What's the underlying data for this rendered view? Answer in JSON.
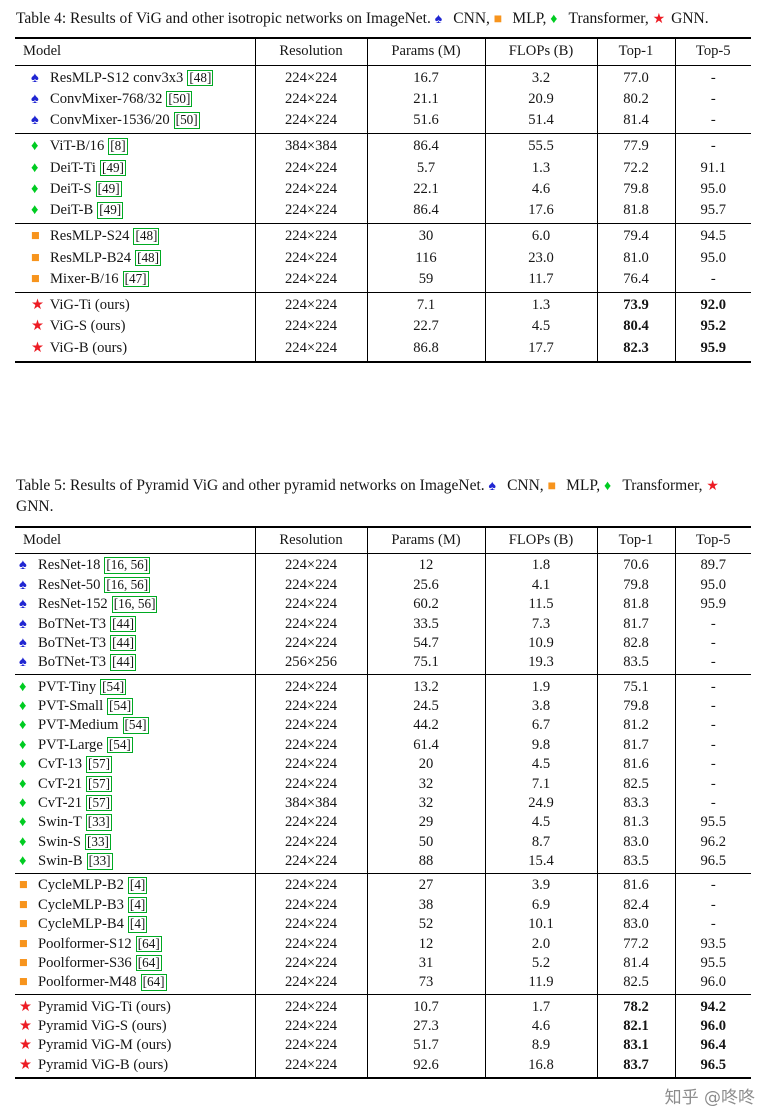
{
  "page": {
    "watermark": "知乎 @咚咚"
  },
  "symbols": {
    "cnn": {
      "glyph": "♠",
      "color": "#2026d2"
    },
    "mlp": {
      "glyph": "■",
      "color": "#f7941d"
    },
    "transformer": {
      "glyph": "♦",
      "color": "#00cc22"
    },
    "gnn": {
      "glyph": "★",
      "color": "#ed1c24"
    }
  },
  "cite_color": "#00aa22",
  "tables": [
    {
      "label": "Table 4:",
      "caption": "Results of ViG and other isotropic networks on ImageNet.",
      "legend": [
        {
          "symbol": "cnn",
          "text": "CNN,"
        },
        {
          "symbol": "mlp",
          "text": "MLP,"
        },
        {
          "symbol": "transformer",
          "text": "Transformer,"
        },
        {
          "symbol": "gnn",
          "text": "GNN."
        }
      ],
      "columns": [
        "Model",
        "Resolution",
        "Params (M)",
        "FLOPs (B)",
        "Top-1",
        "Top-5"
      ],
      "groups": [
        {
          "rows": [
            {
              "symbol": "cnn",
              "model": "ResMLP-S12 conv3x3",
              "cite": "[48]",
              "resolution": "224×224",
              "params": "16.7",
              "flops": "3.2",
              "top1": "77.0",
              "top5": "-"
            },
            {
              "symbol": "cnn",
              "model": "ConvMixer-768/32",
              "cite": "[50]",
              "resolution": "224×224",
              "params": "21.1",
              "flops": "20.9",
              "top1": "80.2",
              "top5": "-"
            },
            {
              "symbol": "cnn",
              "model": "ConvMixer-1536/20",
              "cite": "[50]",
              "resolution": "224×224",
              "params": "51.6",
              "flops": "51.4",
              "top1": "81.4",
              "top5": "-"
            }
          ]
        },
        {
          "rows": [
            {
              "symbol": "transformer",
              "model": "ViT-B/16",
              "cite": "[8]",
              "resolution": "384×384",
              "params": "86.4",
              "flops": "55.5",
              "top1": "77.9",
              "top5": "-"
            },
            {
              "symbol": "transformer",
              "model": "DeiT-Ti",
              "cite": "[49]",
              "resolution": "224×224",
              "params": "5.7",
              "flops": "1.3",
              "top1": "72.2",
              "top5": "91.1"
            },
            {
              "symbol": "transformer",
              "model": "DeiT-S",
              "cite": "[49]",
              "resolution": "224×224",
              "params": "22.1",
              "flops": "4.6",
              "top1": "79.8",
              "top5": "95.0"
            },
            {
              "symbol": "transformer",
              "model": "DeiT-B",
              "cite": "[49]",
              "resolution": "224×224",
              "params": "86.4",
              "flops": "17.6",
              "top1": "81.8",
              "top5": "95.7"
            }
          ]
        },
        {
          "rows": [
            {
              "symbol": "mlp",
              "model": "ResMLP-S24",
              "cite": "[48]",
              "resolution": "224×224",
              "params": "30",
              "flops": "6.0",
              "top1": "79.4",
              "top5": "94.5"
            },
            {
              "symbol": "mlp",
              "model": "ResMLP-B24",
              "cite": "[48]",
              "resolution": "224×224",
              "params": "116",
              "flops": "23.0",
              "top1": "81.0",
              "top5": "95.0"
            },
            {
              "symbol": "mlp",
              "model": "Mixer-B/16",
              "cite": "[47]",
              "resolution": "224×224",
              "params": "59",
              "flops": "11.7",
              "top1": "76.4",
              "top5": "-"
            }
          ]
        },
        {
          "rows": [
            {
              "symbol": "gnn",
              "model": "ViG-Ti (ours)",
              "resolution": "224×224",
              "params": "7.1",
              "flops": "1.3",
              "top1": "73.9",
              "top5": "92.0",
              "bold": true
            },
            {
              "symbol": "gnn",
              "model": "ViG-S (ours)",
              "resolution": "224×224",
              "params": "22.7",
              "flops": "4.5",
              "top1": "80.4",
              "top5": "95.2",
              "bold": true
            },
            {
              "symbol": "gnn",
              "model": "ViG-B (ours)",
              "resolution": "224×224",
              "params": "86.8",
              "flops": "17.7",
              "top1": "82.3",
              "top5": "95.9",
              "bold": true
            }
          ]
        }
      ]
    },
    {
      "label": "Table 5:",
      "caption": "Results of Pyramid ViG and other pyramid networks on ImageNet.",
      "legend": [
        {
          "symbol": "cnn",
          "text": "CNN,"
        },
        {
          "symbol": "mlp",
          "text": "MLP,"
        },
        {
          "symbol": "transformer",
          "text": "Transformer,"
        },
        {
          "symbol": "gnn",
          "text": "GNN."
        }
      ],
      "columns": [
        "Model",
        "Resolution",
        "Params (M)",
        "FLOPs (B)",
        "Top-1",
        "Top-5"
      ],
      "groups": [
        {
          "rows": [
            {
              "symbol": "cnn",
              "model": "ResNet-18",
              "cite": "[16, 56]",
              "resolution": "224×224",
              "params": "12",
              "flops": "1.8",
              "top1": "70.6",
              "top5": "89.7"
            },
            {
              "symbol": "cnn",
              "model": "ResNet-50",
              "cite": "[16, 56]",
              "resolution": "224×224",
              "params": "25.6",
              "flops": "4.1",
              "top1": "79.8",
              "top5": "95.0"
            },
            {
              "symbol": "cnn",
              "model": "ResNet-152",
              "cite": "[16, 56]",
              "resolution": "224×224",
              "params": "60.2",
              "flops": "11.5",
              "top1": "81.8",
              "top5": "95.9"
            },
            {
              "symbol": "cnn",
              "model": "BoTNet-T3",
              "cite": "[44]",
              "resolution": "224×224",
              "params": "33.5",
              "flops": "7.3",
              "top1": "81.7",
              "top5": "-"
            },
            {
              "symbol": "cnn",
              "model": "BoTNet-T3",
              "cite": "[44]",
              "resolution": "224×224",
              "params": "54.7",
              "flops": "10.9",
              "top1": "82.8",
              "top5": "-"
            },
            {
              "symbol": "cnn",
              "model": "BoTNet-T3",
              "cite": "[44]",
              "resolution": "256×256",
              "params": "75.1",
              "flops": "19.3",
              "top1": "83.5",
              "top5": "-"
            }
          ]
        },
        {
          "rows": [
            {
              "symbol": "transformer",
              "model": "PVT-Tiny",
              "cite": "[54]",
              "resolution": "224×224",
              "params": "13.2",
              "flops": "1.9",
              "top1": "75.1",
              "top5": "-"
            },
            {
              "symbol": "transformer",
              "model": "PVT-Small",
              "cite": "[54]",
              "resolution": "224×224",
              "params": "24.5",
              "flops": "3.8",
              "top1": "79.8",
              "top5": "-"
            },
            {
              "symbol": "transformer",
              "model": "PVT-Medium",
              "cite": "[54]",
              "resolution": "224×224",
              "params": "44.2",
              "flops": "6.7",
              "top1": "81.2",
              "top5": "-"
            },
            {
              "symbol": "transformer",
              "model": "PVT-Large",
              "cite": "[54]",
              "resolution": "224×224",
              "params": "61.4",
              "flops": "9.8",
              "top1": "81.7",
              "top5": "-"
            },
            {
              "symbol": "transformer",
              "model": "CvT-13",
              "cite": "[57]",
              "resolution": "224×224",
              "params": "20",
              "flops": "4.5",
              "top1": "81.6",
              "top5": "-"
            },
            {
              "symbol": "transformer",
              "model": "CvT-21",
              "cite": "[57]",
              "resolution": "224×224",
              "params": "32",
              "flops": "7.1",
              "top1": "82.5",
              "top5": "-"
            },
            {
              "symbol": "transformer",
              "model": "CvT-21",
              "cite": "[57]",
              "resolution": "384×384",
              "params": "32",
              "flops": "24.9",
              "top1": "83.3",
              "top5": "-"
            },
            {
              "symbol": "transformer",
              "model": "Swin-T",
              "cite": "[33]",
              "resolution": "224×224",
              "params": "29",
              "flops": "4.5",
              "top1": "81.3",
              "top5": "95.5"
            },
            {
              "symbol": "transformer",
              "model": "Swin-S",
              "cite": "[33]",
              "resolution": "224×224",
              "params": "50",
              "flops": "8.7",
              "top1": "83.0",
              "top5": "96.2"
            },
            {
              "symbol": "transformer",
              "model": "Swin-B",
              "cite": "[33]",
              "resolution": "224×224",
              "params": "88",
              "flops": "15.4",
              "top1": "83.5",
              "top5": "96.5"
            }
          ]
        },
        {
          "rows": [
            {
              "symbol": "mlp",
              "model": "CycleMLP-B2",
              "cite": "[4]",
              "resolution": "224×224",
              "params": "27",
              "flops": "3.9",
              "top1": "81.6",
              "top5": "-"
            },
            {
              "symbol": "mlp",
              "model": "CycleMLP-B3",
              "cite": "[4]",
              "resolution": "224×224",
              "params": "38",
              "flops": "6.9",
              "top1": "82.4",
              "top5": "-"
            },
            {
              "symbol": "mlp",
              "model": "CycleMLP-B4",
              "cite": "[4]",
              "resolution": "224×224",
              "params": "52",
              "flops": "10.1",
              "top1": "83.0",
              "top5": "-"
            },
            {
              "symbol": "mlp",
              "model": "Poolformer-S12",
              "cite": "[64]",
              "resolution": "224×224",
              "params": "12",
              "flops": "2.0",
              "top1": "77.2",
              "top5": "93.5"
            },
            {
              "symbol": "mlp",
              "model": "Poolformer-S36",
              "cite": "[64]",
              "resolution": "224×224",
              "params": "31",
              "flops": "5.2",
              "top1": "81.4",
              "top5": "95.5"
            },
            {
              "symbol": "mlp",
              "model": "Poolformer-M48",
              "cite": "[64]",
              "resolution": "224×224",
              "params": "73",
              "flops": "11.9",
              "top1": "82.5",
              "top5": "96.0"
            }
          ]
        },
        {
          "rows": [
            {
              "symbol": "gnn",
              "model": "Pyramid ViG-Ti (ours)",
              "resolution": "224×224",
              "params": "10.7",
              "flops": "1.7",
              "top1": "78.2",
              "top5": "94.2",
              "bold": true
            },
            {
              "symbol": "gnn",
              "model": "Pyramid ViG-S (ours)",
              "resolution": "224×224",
              "params": "27.3",
              "flops": "4.6",
              "top1": "82.1",
              "top5": "96.0",
              "bold": true
            },
            {
              "symbol": "gnn",
              "model": "Pyramid ViG-M (ours)",
              "resolution": "224×224",
              "params": "51.7",
              "flops": "8.9",
              "top1": "83.1",
              "top5": "96.4",
              "bold": true
            },
            {
              "symbol": "gnn",
              "model": "Pyramid ViG-B (ours)",
              "resolution": "224×224",
              "params": "92.6",
              "flops": "16.8",
              "top1": "83.7",
              "top5": "96.5",
              "bold": true
            }
          ]
        }
      ]
    }
  ]
}
